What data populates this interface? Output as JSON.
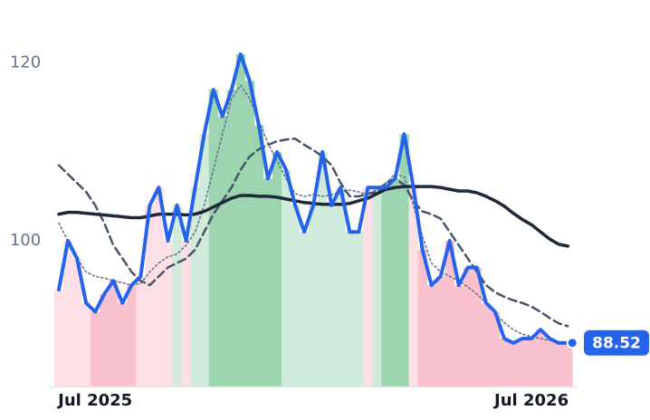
{
  "chart_data": {
    "type": "line",
    "categories": [
      null,
      null,
      null,
      null,
      "Jul 2025",
      null,
      null,
      null,
      null,
      null,
      null,
      null,
      null,
      null,
      null,
      null,
      null,
      null,
      null,
      null,
      null,
      null,
      null,
      null,
      null,
      null,
      null,
      null,
      null,
      null,
      null,
      null,
      null,
      null,
      null,
      null,
      null,
      null,
      null,
      null,
      null,
      null,
      null,
      null,
      null,
      null,
      null,
      null,
      null,
      null,
      null,
      null,
      "Jul 2026",
      null,
      null,
      null,
      null
    ],
    "series": [
      {
        "color": "#2563eb",
        "width": 4,
        "dash": "none",
        "values": [
          94.5,
          100,
          98,
          93,
          92,
          94,
          95.5,
          93,
          95,
          96,
          104,
          106,
          100,
          104,
          100,
          106,
          112,
          117,
          114,
          117,
          121,
          118,
          113,
          107,
          110,
          108,
          104,
          101,
          104,
          110,
          104,
          106,
          101,
          101,
          106,
          106,
          106,
          107,
          112,
          106,
          99,
          95,
          96,
          100,
          95,
          97,
          97,
          93,
          92,
          89,
          88.5,
          89,
          89,
          90,
          89,
          88.5,
          88.52
        ]
      },
      {
        "color": "#1e293b",
        "width": 3.5,
        "dash": "none",
        "values": [
          103,
          103.2,
          103.2,
          103.1,
          103,
          102.9,
          102.8,
          102.7,
          102.6,
          102.6,
          102.8,
          103,
          103,
          103,
          102.9,
          103,
          103.3,
          103.8,
          104.3,
          104.8,
          105.1,
          105.1,
          105,
          105,
          104.9,
          104.7,
          104.5,
          104.3,
          104.2,
          104.1,
          104.1,
          104.1,
          104.2,
          104.5,
          104.8,
          105.3,
          105.8,
          106,
          106.1,
          106.1,
          106.1,
          106.1,
          106,
          105.8,
          105.6,
          105.6,
          105.4,
          105,
          104.5,
          103.9,
          103.1,
          102.4,
          101.8,
          101,
          100.2,
          99.6,
          99.4
        ]
      },
      {
        "color": "#475569",
        "width": 2.5,
        "dash": "9 5",
        "values": [
          108.5,
          107.5,
          106.5,
          105.5,
          104,
          102,
          99.5,
          98,
          96.5,
          95.5,
          95,
          96,
          97,
          97.5,
          98,
          99,
          101,
          103,
          104.5,
          106,
          108,
          109.5,
          110.3,
          110.8,
          111.2,
          111.4,
          111.5,
          110.8,
          110.2,
          109.5,
          108.5,
          106.5,
          105,
          105,
          105.3,
          105.5,
          106.5,
          107,
          106.3,
          104.5,
          103.3,
          103,
          102.5,
          101,
          99.5,
          98,
          96.5,
          95,
          94.2,
          93.7,
          93.3,
          93,
          92.6,
          92,
          91.3,
          90.7,
          90.4
        ]
      },
      {
        "color": "#64748b",
        "width": 1.6,
        "dash": "2 3",
        "values": [
          102,
          100,
          98,
          96.5,
          96,
          95.8,
          95.5,
          95.3,
          95,
          95.2,
          96.5,
          97.5,
          98.2,
          98.5,
          99.5,
          101,
          104,
          108,
          112,
          116,
          117.5,
          116,
          113.5,
          111,
          109,
          107,
          105.3,
          105,
          105.2,
          105,
          105.2,
          105.5,
          105.7,
          105.5,
          105.2,
          105.8,
          106.5,
          107.5,
          107.2,
          104,
          100.5,
          97.5,
          96.5,
          96,
          95.5,
          94.8,
          94,
          93,
          91.8,
          90.8,
          90,
          89.5,
          89.2,
          89,
          88.8,
          88.6,
          88.5
        ]
      }
    ],
    "band_colors": [
      "#fde0e6",
      "#fde0e6",
      "#fde0e6",
      "#fde0e6",
      "#f9c1cd",
      "#f9c1cd",
      "#f9c1cd",
      "#f9c1cd",
      "#f9c1cd",
      "#fde0e6",
      "#fde0e6",
      "#fde0e6",
      "#fde0e6",
      "#d0eadb",
      "#fde0e6",
      "#d0eadb",
      "#d0eadb",
      "#9dd5b0",
      "#9dd5b0",
      "#9dd5b0",
      "#9dd5b0",
      "#9dd5b0",
      "#9dd5b0",
      "#9dd5b0",
      "#9dd5b0",
      "#d0eadb",
      "#d0eadb",
      "#d0eadb",
      "#d0eadb",
      "#d0eadb",
      "#d0eadb",
      "#d0eadb",
      "#d0eadb",
      "#d0eadb",
      "#fde0e6",
      "#d0eadb",
      "#9dd5b0",
      "#9dd5b0",
      "#9dd5b0",
      "#fde0e6",
      "#f9c1cd",
      "#f9c1cd",
      "#f9c1cd",
      "#f9c1cd",
      "#f9c1cd",
      "#f9c1cd",
      "#f9c1cd",
      "#f9c1cd",
      "#f9c1cd",
      "#f9c1cd",
      "#f9c1cd",
      "#f9c1cd",
      "#f9c1cd",
      "#f9c1cd",
      "#f9c1cd",
      "#f9c1cd",
      "#f9c1cd"
    ],
    "ylim": [
      83.6,
      127.1
    ],
    "yticks": [
      100,
      120
    ],
    "grid": false
  }
}
